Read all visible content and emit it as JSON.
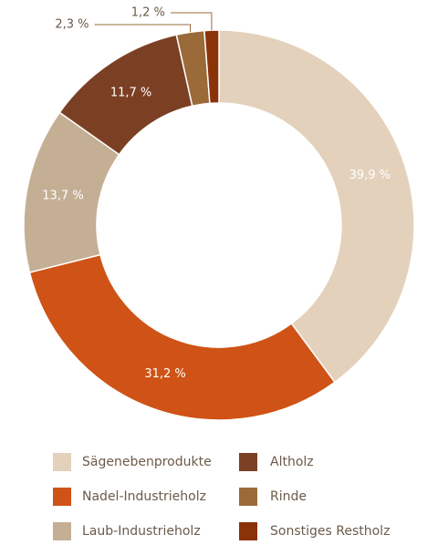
{
  "chart_data": {
    "type": "donut",
    "categories": [
      "Sägenebenprodukte",
      "Nadel-Industrieholz",
      "Laub-Industrieholz",
      "Altholz",
      "Rinde",
      "Sonstiges Restholz"
    ],
    "values": [
      39.9,
      31.2,
      13.7,
      11.7,
      2.3,
      1.2
    ],
    "value_labels": [
      "39,9 %",
      "31,2 %",
      "13,7 %",
      "11,7 %",
      "2,3 %",
      "1,2 %"
    ],
    "colors": [
      "#e3d1bb",
      "#cf5316",
      "#c5af94",
      "#7b4023",
      "#9b6a39",
      "#8a3208"
    ]
  }
}
